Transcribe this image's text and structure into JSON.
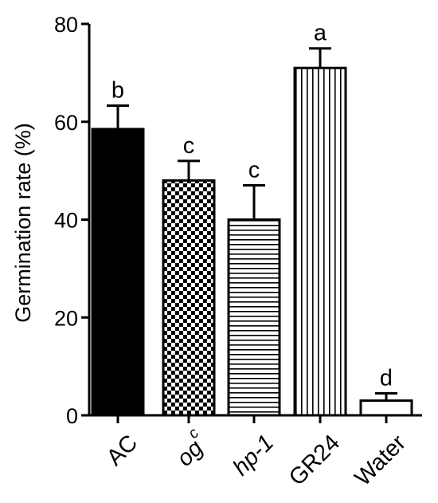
{
  "chart_data": {
    "type": "bar",
    "title": "",
    "xlabel": "",
    "ylabel": "Germination rate (%)",
    "ylim": [
      0,
      80
    ],
    "yticks": [
      0,
      20,
      40,
      60,
      80
    ],
    "grid": false,
    "legend": "none",
    "categories": [
      "AC",
      "og",
      "hp-1",
      "GR24",
      "Water"
    ],
    "category_superscripts": [
      "",
      "c",
      "",
      "",
      ""
    ],
    "category_italic": [
      false,
      true,
      true,
      false,
      false
    ],
    "values": [
      58.5,
      48,
      40,
      71,
      3
    ],
    "errors": [
      4.8,
      4,
      7,
      4,
      1.5
    ],
    "significance": [
      "b",
      "c",
      "c",
      "a",
      "d"
    ],
    "fill_patterns": [
      "solid-black",
      "checkerboard",
      "horizontal-lines",
      "vertical-lines",
      "white"
    ]
  }
}
